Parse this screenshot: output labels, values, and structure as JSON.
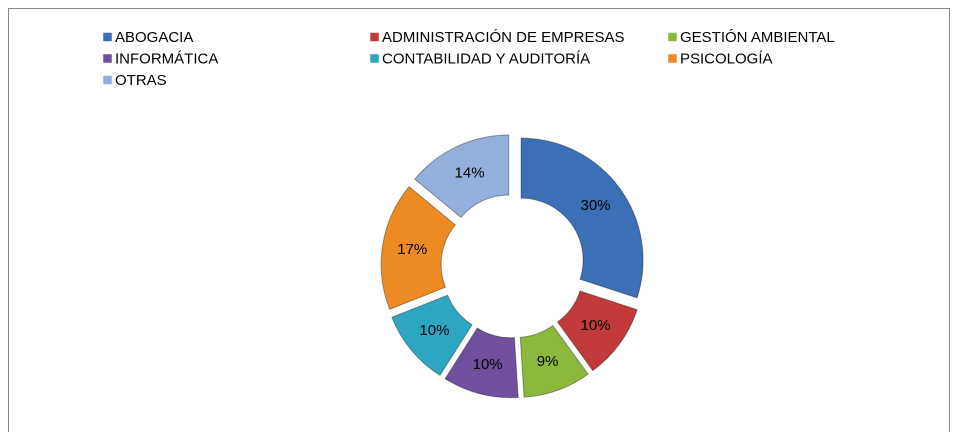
{
  "chart_data": {
    "type": "doughnut",
    "categories": [
      "ABOGACIA",
      "ADMINISTRACIÓN DE EMPRESAS",
      "GESTIÓN AMBIENTAL",
      "INFORMÁTICA",
      "CONTABILIDAD Y AUDITORÍA",
      "PSICOLOGÍA",
      "OTRAS"
    ],
    "values": [
      30,
      10,
      9,
      10,
      10,
      17,
      14
    ],
    "value_labels": [
      "30%",
      "10%",
      "9%",
      "10%",
      "10%",
      "17%",
      "14%"
    ],
    "colors": [
      "#3b6fb6",
      "#c23a3a",
      "#8cb83c",
      "#6f4f9e",
      "#2ea6c2",
      "#ee8a22",
      "#93afdc"
    ],
    "legend": "top"
  }
}
